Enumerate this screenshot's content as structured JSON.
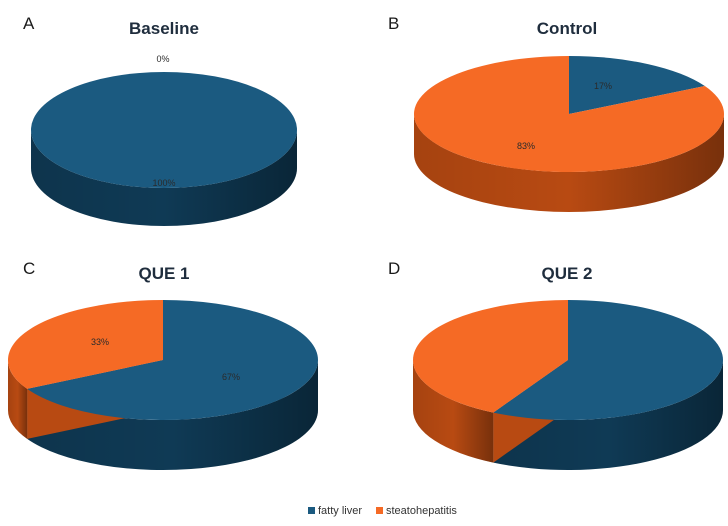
{
  "colors": {
    "fatty_liver": "#1b5a80",
    "fatty_liver_side": "#0f3a55",
    "steatohepatitis": "#f56a25",
    "steatohepatitis_side": "#b84a12"
  },
  "chart_data": [
    {
      "type": "pie",
      "panel": "A",
      "title": "Baseline",
      "categories": [
        "fatty liver",
        "steatohepatitis"
      ],
      "values": [
        100,
        0
      ],
      "labels": [
        "100%",
        "0%"
      ]
    },
    {
      "type": "pie",
      "panel": "B",
      "title": "Control",
      "categories": [
        "fatty liver",
        "steatohepatitis"
      ],
      "values": [
        17,
        83
      ],
      "labels": [
        "17%",
        "83%"
      ]
    },
    {
      "type": "pie",
      "panel": "C",
      "title": "QUE 1",
      "categories": [
        "fatty liver",
        "steatohepatitis"
      ],
      "values": [
        67,
        33
      ],
      "labels": [
        "67%",
        "33%"
      ]
    },
    {
      "type": "pie",
      "panel": "D",
      "title": "QUE 2",
      "categories": [
        "fatty liver",
        "steatohepatitis"
      ],
      "values": [
        58,
        42
      ],
      "labels": [
        "",
        ""
      ]
    }
  ],
  "legend": {
    "items": [
      {
        "label": "fatty liver",
        "color": "#1b5a80"
      },
      {
        "label": "steatohepatitis",
        "color": "#f56a25"
      }
    ]
  }
}
